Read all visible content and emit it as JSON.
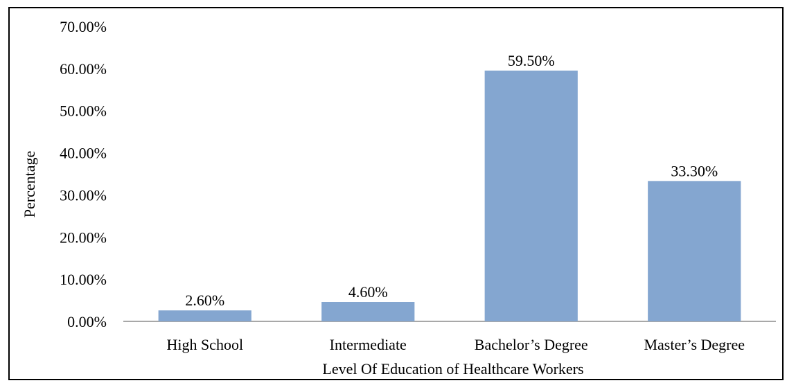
{
  "chart_data": {
    "type": "bar",
    "categories": [
      "High School",
      "Intermediate",
      "Bachelor’s Degree",
      "Master’s Degree"
    ],
    "values": [
      2.6,
      4.6,
      59.5,
      33.3
    ],
    "data_labels": [
      "2.60%",
      "4.60%",
      "59.50%",
      "33.30%"
    ],
    "ylim": [
      0,
      70
    ],
    "yticks": [
      0,
      10,
      20,
      30,
      40,
      50,
      60,
      70
    ],
    "ytick_labels": [
      "0.00%",
      "10.00%",
      "20.00%",
      "30.00%",
      "40.00%",
      "50.00%",
      "60.00%",
      "70.00%"
    ],
    "xlabel": "Level Of Education of Healthcare Workers",
    "ylabel": "Percentage",
    "title": "",
    "grid": false,
    "legend": "none",
    "bar_color": "#84a6d0",
    "axis_color": "#8c8c8c"
  }
}
